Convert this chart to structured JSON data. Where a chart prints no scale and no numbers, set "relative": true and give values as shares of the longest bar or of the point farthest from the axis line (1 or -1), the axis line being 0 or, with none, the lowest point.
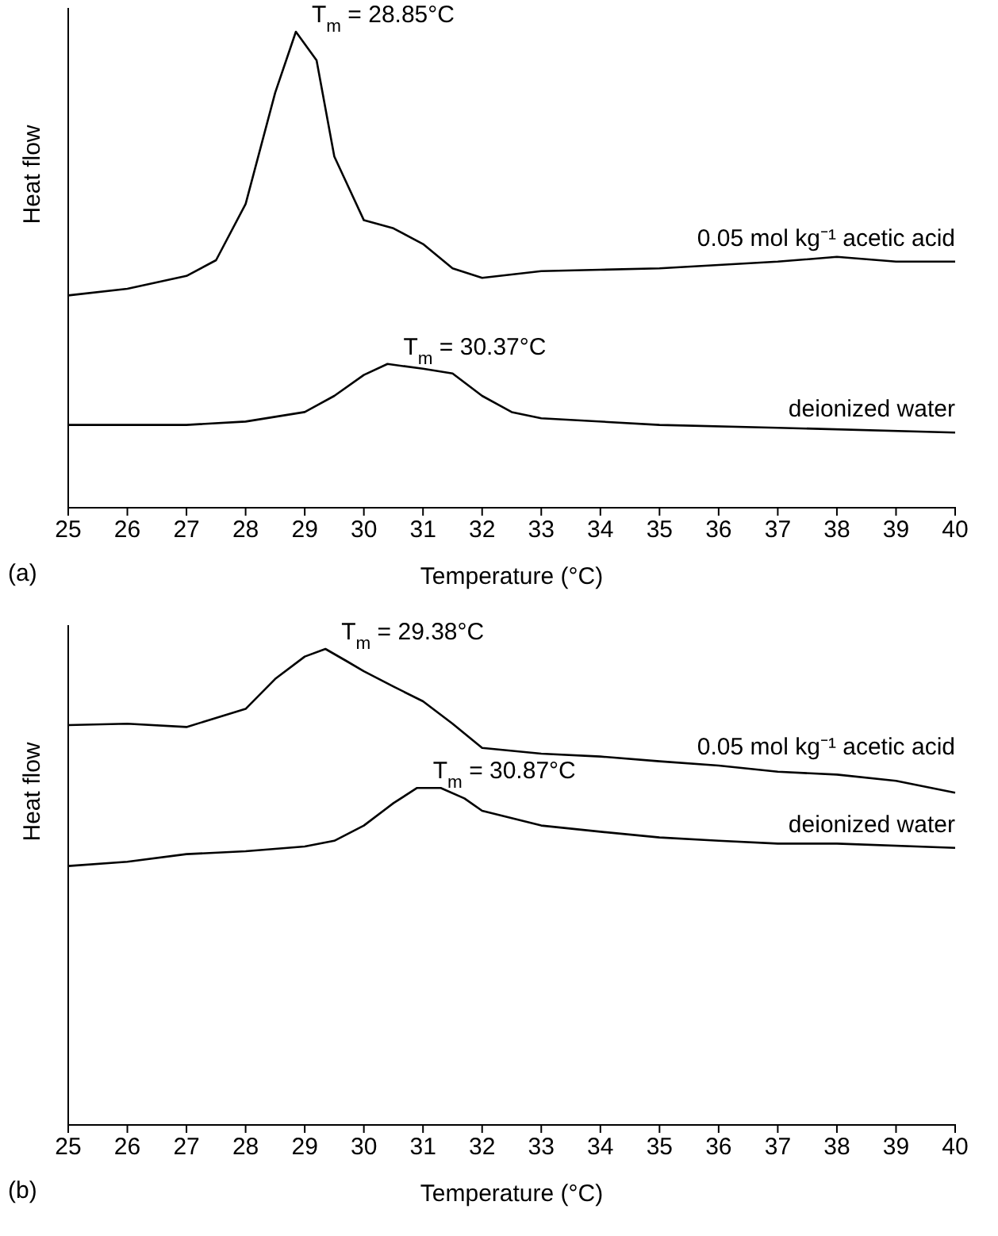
{
  "chart_data": [
    {
      "type": "line",
      "relative": true,
      "xlabel": "Temperature (°C)",
      "ylabel": "Heat flow",
      "xlim": [
        25,
        40
      ],
      "xticks": [
        25,
        26,
        27,
        28,
        29,
        30,
        31,
        32,
        33,
        34,
        35,
        36,
        37,
        38,
        39,
        40
      ],
      "tick_labels": "x",
      "series": [
        {
          "name": "0.05 mol kg⁻¹ acetic acid",
          "color": "#000000",
          "x": [
            25,
            26,
            27,
            27.5,
            28,
            28.5,
            28.85,
            29.2,
            29.5,
            30,
            30.5,
            31,
            31.5,
            32,
            33,
            34,
            35,
            36,
            37,
            38,
            39,
            40
          ],
          "values": [
            0.446,
            0.46,
            0.487,
            0.52,
            0.638,
            0.872,
            1,
            0.94,
            0.738,
            0.604,
            0.587,
            0.554,
            0.503,
            0.483,
            0.497,
            0.5,
            0.503,
            0.51,
            0.517,
            0.527,
            0.517,
            0.517
          ]
        },
        {
          "name": "deionized water",
          "color": "#000000",
          "x": [
            25,
            27,
            28,
            29,
            29.5,
            30,
            30.4,
            31,
            31.5,
            32,
            32.5,
            33,
            35,
            37,
            40
          ],
          "values": [
            0.174,
            0.174,
            0.181,
            0.201,
            0.235,
            0.279,
            0.302,
            0.292,
            0.282,
            0.235,
            0.201,
            0.188,
            0.174,
            0.168,
            0.158
          ]
        }
      ],
      "annotations": [
        {
          "text": "T$_{m}$ = 28.85°C",
          "x": 28.85,
          "y": 1
        },
        {
          "text": "T$_{m}$ = 30.37°C",
          "x": 30.4,
          "y": 0.302
        },
        "(a)"
      ]
    },
    {
      "type": "line",
      "relative": true,
      "xlabel": "Temperature (°C)",
      "ylabel": "Heat flow",
      "xlim": [
        25,
        40
      ],
      "xticks": [
        25,
        26,
        27,
        28,
        29,
        30,
        31,
        32,
        33,
        34,
        35,
        36,
        37,
        38,
        39,
        40
      ],
      "tick_labels": "x",
      "series": [
        {
          "name": "0.05 mol kg⁻¹ acetic acid",
          "color": "#000000",
          "x": [
            25,
            26,
            27,
            28,
            28.5,
            29,
            29.35,
            29.7,
            30,
            30.5,
            31,
            31.5,
            32,
            33,
            34,
            35,
            36,
            37,
            38,
            39,
            40
          ],
          "values": [
            0.84,
            0.843,
            0.836,
            0.874,
            0.937,
            0.984,
            1,
            0.975,
            0.953,
            0.921,
            0.89,
            0.843,
            0.792,
            0.78,
            0.774,
            0.764,
            0.755,
            0.742,
            0.736,
            0.723,
            0.698
          ]
        },
        {
          "name": "deionized water",
          "color": "#000000",
          "x": [
            25,
            26,
            27,
            28,
            29,
            29.5,
            30,
            30.5,
            30.9,
            31.3,
            31.7,
            32,
            33,
            34,
            35,
            36,
            37,
            38,
            40
          ],
          "values": [
            0.544,
            0.553,
            0.569,
            0.575,
            0.585,
            0.597,
            0.629,
            0.676,
            0.708,
            0.708,
            0.686,
            0.66,
            0.629,
            0.616,
            0.604,
            0.597,
            0.591,
            0.591,
            0.582
          ]
        }
      ],
      "annotations": [
        {
          "text": "T$_{m}$ = 29.38°C",
          "x": 29.35,
          "y": 1
        },
        {
          "text": "T$_{m}$ = 30.87°C",
          "x": 30.9,
          "y": 0.708
        },
        "(b)"
      ]
    }
  ]
}
